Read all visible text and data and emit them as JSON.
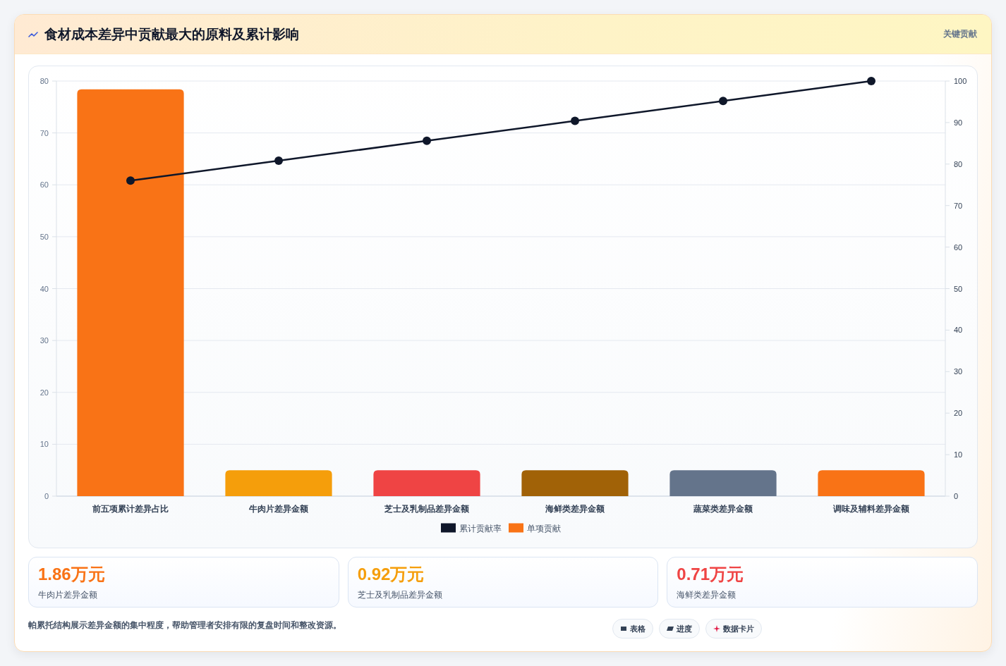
{
  "chart_data": [
    {
      "type": "bar",
      "title": "食材成本差异中贡献最大的原料及累计影响",
      "subtitle": "关键贡献",
      "categories": [
        "前五项累计差异占比",
        "牛肉片差异金额",
        "芝士及乳制品差异金额",
        "海鲜类差异金额",
        "蔬菜类差异金额",
        "调味及辅料差异金额"
      ],
      "series": [
        {
          "name": "累计贡献率",
          "type": "line",
          "axis": "y2",
          "color": "#0f172a",
          "values": [
            76,
            80.8,
            85.6,
            90.4,
            95.2,
            100
          ]
        },
        {
          "name": "单项贡献",
          "type": "bar",
          "color": "#f97316",
          "colors": [
            "#f97316",
            "#f59e0b",
            "#ef4444",
            "#a16207",
            "#64748b",
            "#f97316"
          ],
          "values": [
            78.4,
            5,
            5,
            5,
            5,
            5
          ]
        }
      ],
      "ylim": [
        0,
        80
      ],
      "yticks": [
        0,
        10,
        20,
        30,
        40,
        50,
        60,
        70,
        80
      ],
      "y2lim": [
        0,
        100
      ],
      "y2ticks": [
        0,
        10,
        20,
        30,
        40,
        50,
        60,
        70,
        80,
        90,
        100
      ],
      "grid": "y",
      "legend": "bottom",
      "marker": "circle",
      "annotations": [
        "帕累托结构展示差异金额的集中程度，帮助管理者安排有限的复盘时间和整改资源。",
        "表格",
        "进度",
        "数据卡片"
      ]
    },
    {
      "type": "other",
      "colors": [
        "#f97316",
        "#f59e0b",
        "#ef4444"
      ],
      "annotations": [
        "1.86万元",
        "牛肉片差异金额",
        "0.92万元",
        "芝士及乳制品差异金额",
        "0.71万元",
        "海鲜类差异金额"
      ]
    }
  ]
}
